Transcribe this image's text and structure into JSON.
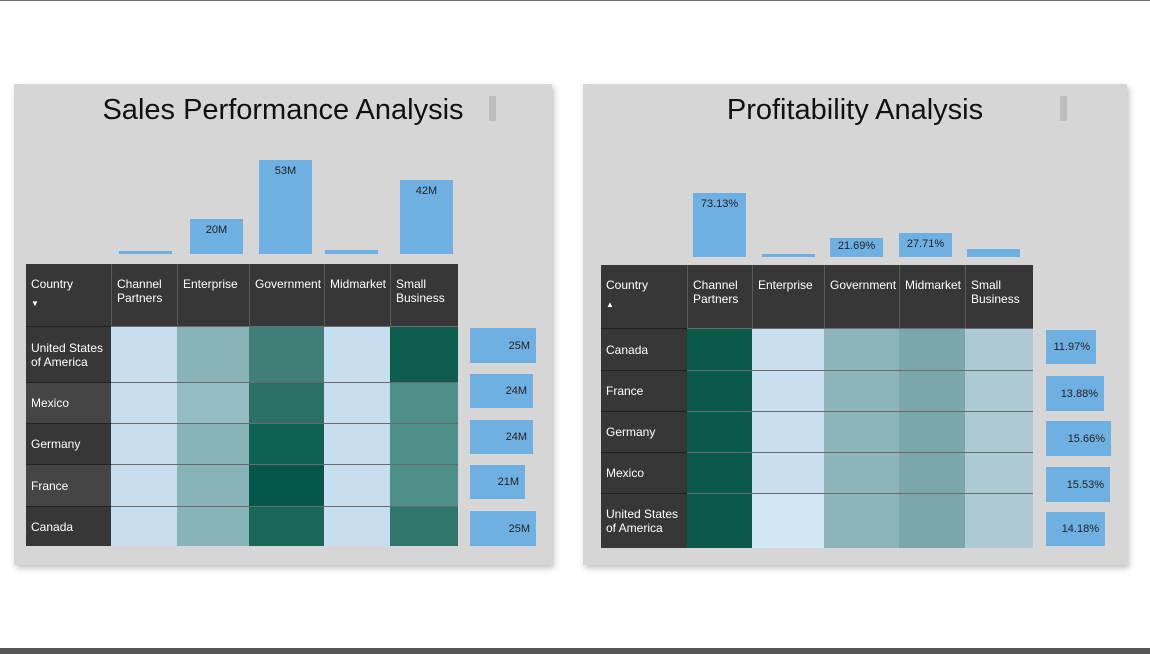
{
  "panels": [
    {
      "title": "Sales Performance Analysis",
      "grid": {
        "country_header": "Country",
        "sort_arrow": "▼",
        "columns": [
          "Channel Partners",
          "Enterprise",
          "Government",
          "Midmarket",
          "Small Business"
        ],
        "rows": [
          "United States of America",
          "Mexico",
          "Germany",
          "France",
          "Canada"
        ],
        "row_label_colors": [
          "#373737",
          "#454545",
          "#373737",
          "#454545",
          "#373737"
        ],
        "cell_colors": [
          [
            "#c6def0",
            "#88b3b9",
            "#3f7f78",
            "#c6def0",
            "#0d5e4e"
          ],
          [
            "#c6def0",
            "#94bcc4",
            "#2b7064",
            "#c6def0",
            "#4f8f89"
          ],
          [
            "#c6def0",
            "#88b3b9",
            "#0f6253",
            "#c6def0",
            "#4f8f89"
          ],
          [
            "#c6def0",
            "#88b3b9",
            "#04574a",
            "#c6def0",
            "#4f8f89"
          ],
          [
            "#c6def0",
            "#88b3b9",
            "#196757",
            "#c6def0",
            "#2f776c"
          ]
        ]
      },
      "column_totals": {
        "values": [
          1.5,
          20,
          53,
          2,
          42
        ],
        "labels": [
          "",
          "20M",
          "53M",
          "",
          "42M"
        ]
      },
      "row_totals": {
        "values": [
          25,
          24,
          24,
          21,
          25
        ],
        "labels": [
          "25M",
          "24M",
          "24M",
          "21M",
          "25M"
        ]
      }
    },
    {
      "title": "Profitability Analysis",
      "grid": {
        "country_header": "Country",
        "sort_arrow": "▲",
        "columns": [
          "Channel Partners",
          "Enterprise",
          "Government",
          "Midmarket",
          "Small Business"
        ],
        "rows": [
          "Canada",
          "France",
          "Germany",
          "Mexico",
          "United States of America"
        ],
        "row_label_colors": [
          "#373737",
          "#373737",
          "#373737",
          "#373737",
          "#373737"
        ],
        "cell_colors": [
          [
            "#0a5a4b",
            "#c9dff0",
            "#8db4b8",
            "#7aa8aa",
            "#adcad4"
          ],
          [
            "#0a5a4b",
            "#c9dff0",
            "#8db4b8",
            "#7aa8aa",
            "#adcad4"
          ],
          [
            "#0a5a4b",
            "#c9dff0",
            "#8db4b8",
            "#7aa8aa",
            "#adcad4"
          ],
          [
            "#0a5a4b",
            "#c9dff0",
            "#8db4b8",
            "#7aa8aa",
            "#adcad4"
          ],
          [
            "#0a5a4b",
            "#d3e6f4",
            "#8db4b8",
            "#7aa8aa",
            "#adcad4"
          ]
        ]
      },
      "column_totals": {
        "values": [
          73.13,
          2,
          21.69,
          27.71,
          9
        ],
        "labels": [
          "73.13%",
          "",
          "21.69%",
          "27.71%",
          ""
        ]
      },
      "row_totals": {
        "values": [
          11.97,
          13.88,
          15.66,
          15.53,
          14.18
        ],
        "labels": [
          "11.97%",
          "13.88%",
          "15.66%",
          "15.53%",
          "14.18%"
        ]
      }
    }
  ]
}
